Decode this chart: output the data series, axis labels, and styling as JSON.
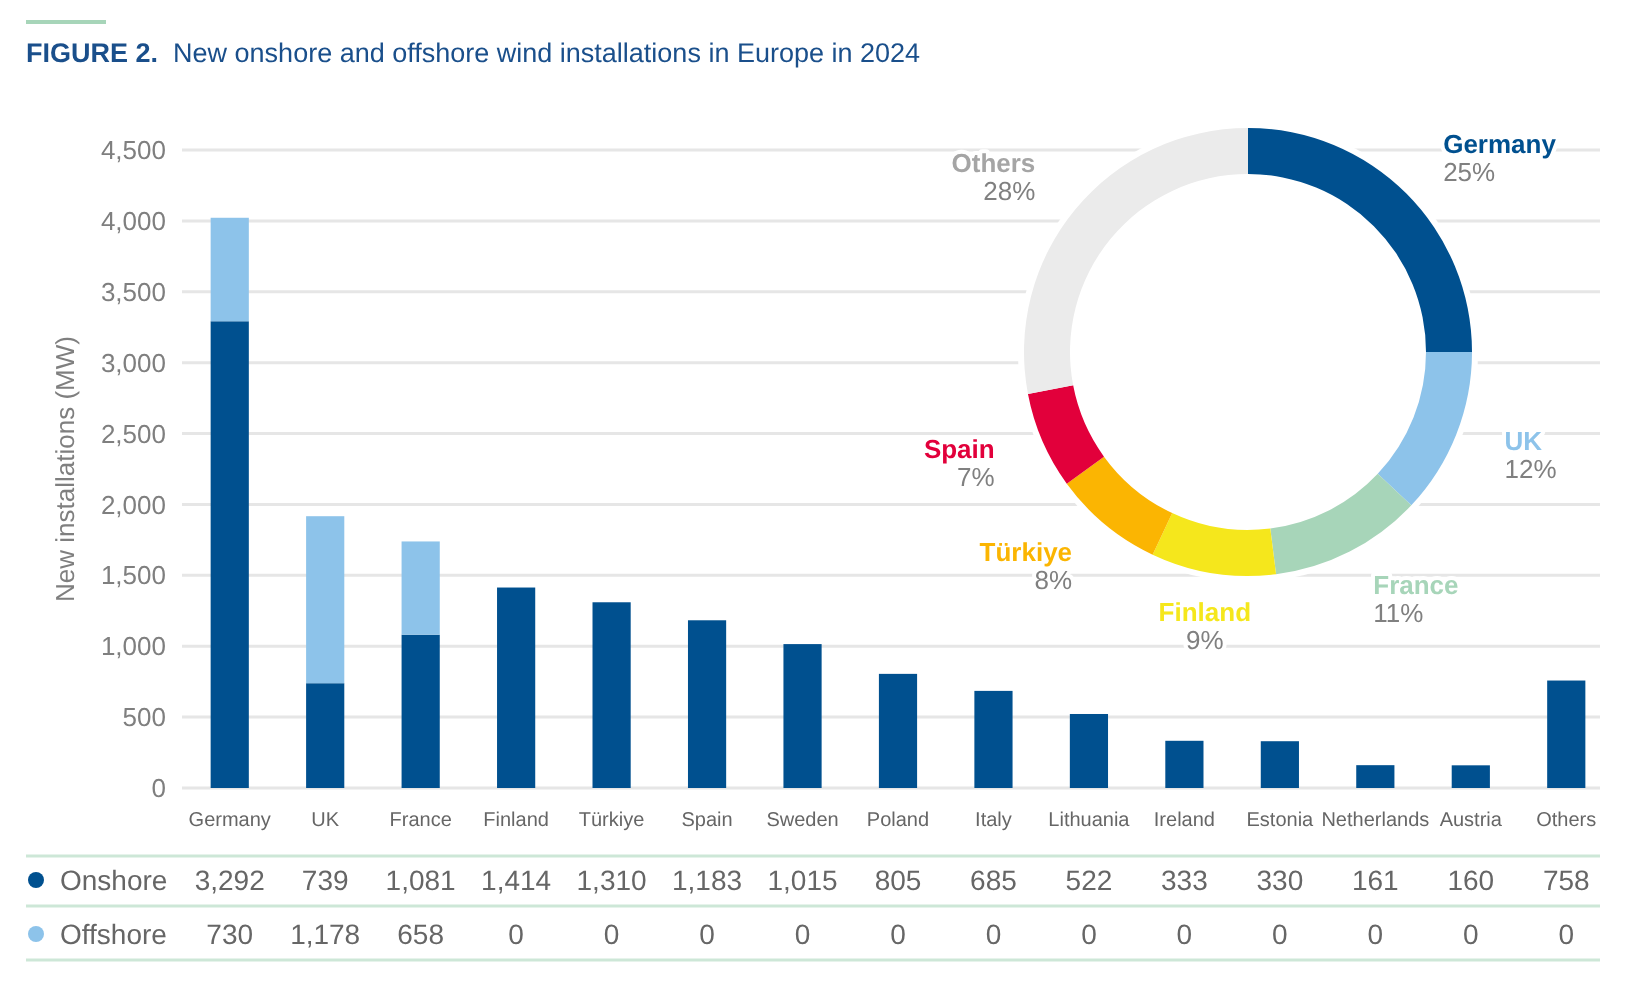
{
  "chart_data": [
    {
      "type": "bar",
      "title": "FIGURE 2.  New onshore and offshore wind installations in Europe in 2024",
      "ylabel": "New installations (MW)",
      "categories": [
        "Germany",
        "UK",
        "France",
        "Finland",
        "Türkiye",
        "Spain",
        "Sweden",
        "Poland",
        "Italy",
        "Lithuania",
        "Ireland",
        "Estonia",
        "Netherlands",
        "Austria",
        "Others"
      ],
      "series": [
        {
          "name": "Onshore",
          "color": "#00508f",
          "values": [
            3292,
            739,
            1081,
            1414,
            1310,
            1183,
            1015,
            805,
            685,
            522,
            333,
            330,
            161,
            160,
            758
          ],
          "value_labels": [
            "3,292",
            "739",
            "1,081",
            "1,414",
            "1,310",
            "1,183",
            "1,015",
            "805",
            "685",
            "522",
            "333",
            "330",
            "161",
            "160",
            "758"
          ]
        },
        {
          "name": "Offshore",
          "color": "#8dc3ea",
          "values": [
            730,
            1178,
            658,
            0,
            0,
            0,
            0,
            0,
            0,
            0,
            0,
            0,
            0,
            0,
            0
          ],
          "value_labels": [
            "730",
            "1,178",
            "658",
            "0",
            "0",
            "0",
            "0",
            "0",
            "0",
            "0",
            "0",
            "0",
            "0",
            "0",
            "0"
          ]
        }
      ],
      "stacked": true,
      "ylim": [
        0,
        4500
      ],
      "yticks": [
        0,
        500,
        {
          "value": 1000,
          "label": "1,000"
        },
        {
          "value": 1500,
          "label": "1,500"
        },
        {
          "value": 2000,
          "label": "2,000"
        },
        {
          "value": 2500,
          "label": "2,500"
        },
        {
          "value": 3000,
          "label": "3,000"
        },
        {
          "value": 3500,
          "label": "3,500"
        },
        {
          "value": 4000,
          "label": "4,000"
        },
        {
          "value": 4500,
          "label": "4,500"
        }
      ],
      "grid": "y",
      "legend": "bottom"
    },
    {
      "type": "donut",
      "categories": [
        "Germany",
        "UK",
        "France",
        "Finland",
        "Türkiye",
        "Spain",
        "Others"
      ],
      "values": [
        25,
        12,
        11,
        9,
        8,
        7,
        28
      ],
      "colors": [
        "#00508f",
        "#8dc3ea",
        "#a7d5b9",
        "#f5e71c",
        "#fbb502",
        "#e2003b",
        "#ebebeb"
      ],
      "value_labels": [
        "25%",
        "12%",
        "11%",
        "9%",
        "8%",
        "7%",
        "28%"
      ]
    }
  ]
}
